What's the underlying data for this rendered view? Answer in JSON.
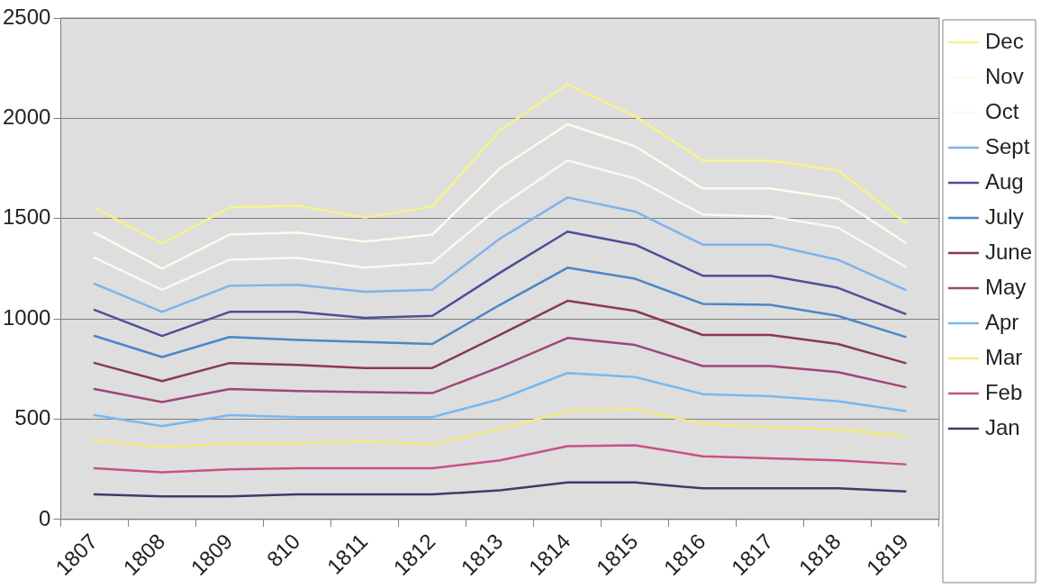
{
  "chart_data": {
    "type": "line",
    "categories": [
      "1807",
      "1808",
      "1809",
      "810",
      "1811",
      "1812",
      "1813",
      "1814",
      "1815",
      "1816",
      "1817",
      "1818",
      "1819"
    ],
    "series": [
      {
        "name": "Jan",
        "color": "#3b3d6b",
        "values": [
          125,
          115,
          115,
          125,
          125,
          125,
          145,
          185,
          185,
          155,
          155,
          155,
          140
        ]
      },
      {
        "name": "Feb",
        "color": "#c8508a",
        "values": [
          255,
          235,
          250,
          255,
          255,
          255,
          295,
          365,
          370,
          315,
          305,
          295,
          275
        ]
      },
      {
        "name": "Mar",
        "color": "#f2ec7a",
        "values": [
          395,
          360,
          380,
          380,
          390,
          375,
          450,
          540,
          550,
          475,
          460,
          450,
          415
        ]
      },
      {
        "name": "Apr",
        "color": "#78b8f0",
        "values": [
          520,
          465,
          520,
          510,
          510,
          510,
          600,
          730,
          710,
          625,
          615,
          590,
          540
        ]
      },
      {
        "name": "May",
        "color": "#a0457a",
        "values": [
          650,
          585,
          650,
          640,
          635,
          630,
          760,
          905,
          870,
          765,
          765,
          735,
          660
        ]
      },
      {
        "name": "June",
        "color": "#8b3a4a",
        "values": [
          780,
          690,
          780,
          770,
          755,
          755,
          920,
          1090,
          1040,
          920,
          920,
          875,
          780
        ]
      },
      {
        "name": "July",
        "color": "#4a87c6",
        "values": [
          915,
          810,
          910,
          895,
          885,
          875,
          1070,
          1255,
          1200,
          1075,
          1070,
          1015,
          910
        ]
      },
      {
        "name": "Aug",
        "color": "#4b4f9a",
        "values": [
          1045,
          915,
          1035,
          1035,
          1005,
          1015,
          1230,
          1435,
          1370,
          1215,
          1215,
          1155,
          1025
        ]
      },
      {
        "name": "Sept",
        "color": "#7fb2ec",
        "values": [
          1175,
          1035,
          1165,
          1170,
          1135,
          1145,
          1400,
          1605,
          1535,
          1370,
          1370,
          1295,
          1145
        ]
      },
      {
        "name": "Oct",
        "color": "#f0fcfc",
        "values": [
          1305,
          1145,
          1295,
          1305,
          1255,
          1280,
          1560,
          1790,
          1700,
          1520,
          1510,
          1455,
          1260
        ]
      },
      {
        "name": "Nov",
        "color": "#fcfcec",
        "values": [
          1430,
          1250,
          1420,
          1430,
          1385,
          1420,
          1750,
          1970,
          1860,
          1650,
          1650,
          1600,
          1380
        ]
      },
      {
        "name": "Dec",
        "color": "#f7f28a",
        "values": [
          1555,
          1375,
          1555,
          1565,
          1505,
          1560,
          1940,
          2170,
          2010,
          1790,
          1790,
          1740,
          1480
        ]
      }
    ],
    "ylim": [
      0,
      2500
    ],
    "yticks": [
      0,
      500,
      1000,
      1500,
      2000,
      2500
    ],
    "grid": "y",
    "legend": "right",
    "marker": "none",
    "line_style": "solid"
  }
}
